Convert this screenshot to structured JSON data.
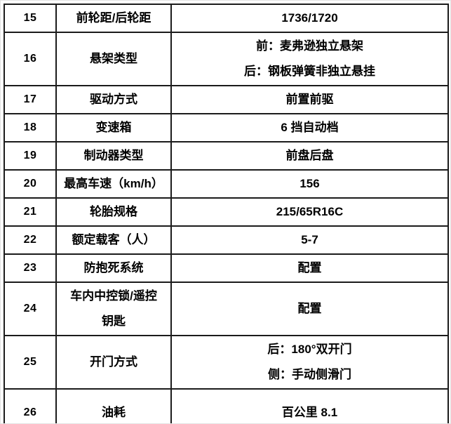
{
  "table": {
    "border_color": "#1b1b1b",
    "text_color": "#000000",
    "background_color": "#ffffff",
    "columns": [
      "row-number",
      "spec-name",
      "spec-value"
    ],
    "rows": [
      {
        "no": "15",
        "label": "前轮距/后轮距",
        "value": [
          "1736/1720"
        ]
      },
      {
        "no": "16",
        "label": "悬架类型",
        "value": [
          "前：麦弗逊独立悬架",
          "后：钢板弹簧非独立悬挂"
        ]
      },
      {
        "no": "17",
        "label": "驱动方式",
        "value": [
          "前置前驱"
        ]
      },
      {
        "no": "18",
        "label": "变速箱",
        "value": [
          "6 挡自动档"
        ]
      },
      {
        "no": "19",
        "label": "制动器类型",
        "value": [
          "前盘后盘"
        ]
      },
      {
        "no": "20",
        "label": "最高车速（km/h）",
        "value": [
          "156"
        ]
      },
      {
        "no": "21",
        "label": "轮胎规格",
        "value": [
          "215/65R16C"
        ]
      },
      {
        "no": "22",
        "label": "额定载客（人）",
        "value": [
          "5-7"
        ]
      },
      {
        "no": "23",
        "label": "防抱死系统",
        "value": [
          "配置"
        ]
      },
      {
        "no": "24",
        "label": [
          "车内中控锁/遥控",
          "钥匙"
        ],
        "value": [
          "配置"
        ]
      },
      {
        "no": "25",
        "label": "开门方式",
        "value": [
          "后：180°双开门",
          "侧：手动侧滑门"
        ]
      },
      {
        "no": "26",
        "label": "油耗",
        "value": [
          "百公里 8.1"
        ]
      }
    ]
  }
}
